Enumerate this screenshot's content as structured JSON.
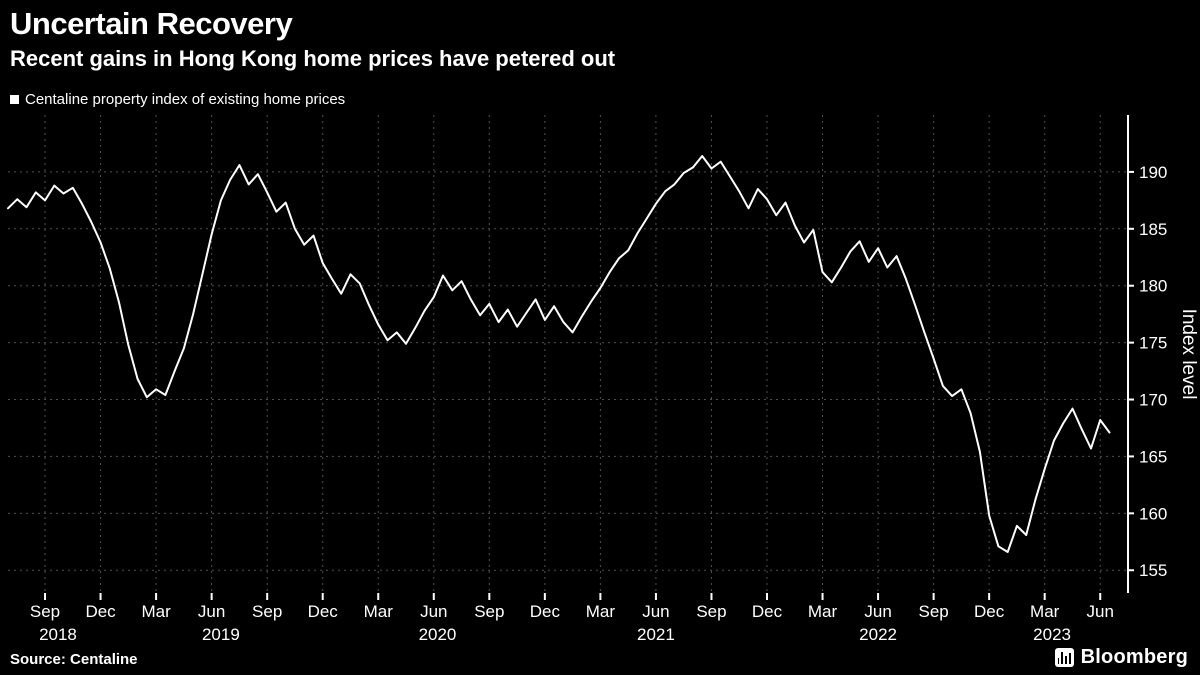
{
  "header": {
    "title": "Uncertain Recovery",
    "subtitle": "Recent gains in Hong Kong home prices have petered out"
  },
  "legend": {
    "label": "Centaline property index of existing home prices",
    "marker_color": "#ffffff"
  },
  "footer": {
    "source": "Source: Centaline",
    "brand": "Bloomberg"
  },
  "colors": {
    "background": "#000000",
    "text": "#ffffff",
    "grid": "#4f4f4f",
    "line": "#ffffff",
    "axis": "#ffffff"
  },
  "chart_data": {
    "type": "line",
    "title": "Uncertain Recovery",
    "subtitle": "Recent gains in Hong Kong home prices have petered out",
    "series_name": "Centaline property index of existing home prices",
    "ylabel": "Index level",
    "ylabel_side": "right",
    "grid": "dotted",
    "legend_position": "top-left",
    "yticks": [
      155,
      160,
      165,
      170,
      175,
      180,
      185,
      190
    ],
    "ylim": [
      153,
      195
    ],
    "x_unit": "months since 2018-01-01 (decimal)",
    "xlim": [
      6.0,
      66.5
    ],
    "x_start": 6.0,
    "x_step": 0.5,
    "values": [
      186.8,
      187.6,
      186.9,
      188.2,
      187.5,
      188.8,
      188.1,
      188.6,
      187.2,
      185.6,
      183.8,
      181.5,
      178.5,
      174.8,
      171.8,
      170.2,
      170.9,
      170.4,
      172.5,
      174.5,
      177.5,
      181.0,
      184.5,
      187.5,
      189.3,
      190.6,
      188.9,
      189.8,
      188.2,
      186.5,
      187.3,
      185.0,
      183.6,
      184.4,
      182.0,
      180.6,
      179.3,
      181.0,
      180.2,
      178.3,
      176.6,
      175.2,
      175.9,
      174.9,
      176.3,
      177.8,
      179.0,
      180.9,
      179.6,
      180.4,
      178.8,
      177.4,
      178.4,
      176.8,
      177.9,
      176.4,
      177.6,
      178.8,
      177.0,
      178.2,
      176.8,
      175.9,
      177.3,
      178.6,
      179.8,
      181.2,
      182.4,
      183.1,
      184.6,
      185.9,
      187.2,
      188.3,
      188.9,
      189.9,
      190.4,
      191.4,
      190.3,
      190.9,
      189.6,
      188.3,
      186.8,
      188.5,
      187.6,
      186.2,
      187.3,
      185.3,
      183.8,
      184.9,
      181.2,
      180.3,
      181.6,
      183.0,
      183.9,
      182.1,
      183.3,
      181.6,
      182.6,
      180.6,
      178.3,
      175.9,
      173.6,
      171.2,
      170.3,
      170.9,
      168.8,
      165.4,
      159.8,
      157.1,
      156.6,
      158.9,
      158.1,
      161.2,
      163.9,
      166.4,
      167.9,
      169.2,
      167.4,
      165.7,
      168.2,
      167.1
    ],
    "xticks": [
      {
        "m": 8,
        "label": "Sep"
      },
      {
        "m": 11,
        "label": "Dec"
      },
      {
        "m": 14,
        "label": "Mar"
      },
      {
        "m": 17,
        "label": "Jun"
      },
      {
        "m": 20,
        "label": "Sep"
      },
      {
        "m": 23,
        "label": "Dec"
      },
      {
        "m": 26,
        "label": "Mar"
      },
      {
        "m": 29,
        "label": "Jun"
      },
      {
        "m": 32,
        "label": "Sep"
      },
      {
        "m": 35,
        "label": "Dec"
      },
      {
        "m": 38,
        "label": "Mar"
      },
      {
        "m": 41,
        "label": "Jun"
      },
      {
        "m": 44,
        "label": "Sep"
      },
      {
        "m": 47,
        "label": "Dec"
      },
      {
        "m": 50,
        "label": "Mar"
      },
      {
        "m": 53,
        "label": "Jun"
      },
      {
        "m": 56,
        "label": "Sep"
      },
      {
        "m": 59,
        "label": "Dec"
      },
      {
        "m": 62,
        "label": "Mar"
      },
      {
        "m": 65,
        "label": "Jun"
      }
    ],
    "year_labels": [
      {
        "m": 8.7,
        "label": "2018"
      },
      {
        "m": 17.5,
        "label": "2019"
      },
      {
        "m": 29.2,
        "label": "2020"
      },
      {
        "m": 41.0,
        "label": "2021"
      },
      {
        "m": 53.0,
        "label": "2022"
      },
      {
        "m": 62.4,
        "label": "2023"
      }
    ]
  }
}
